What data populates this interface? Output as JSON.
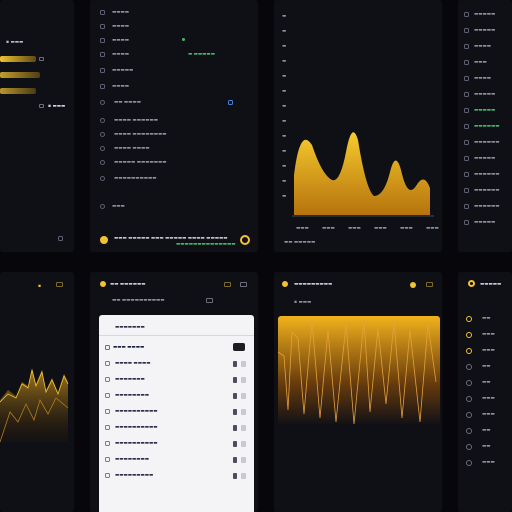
{
  "colors": {
    "bg": "#07070b",
    "panel": "#0f0f16",
    "accent_yellow": "#f2c232",
    "accent_green": "#43b86a",
    "white_card": "#f4f4f6"
  },
  "panel_a": {
    "header": "▪ ▬▬▬",
    "bars": [
      {
        "fill": 0.85
      },
      {
        "fill": 0.95
      },
      {
        "fill": 0.85
      }
    ]
  },
  "panel_b": {
    "items": [
      "▬▬▬▬",
      "▬▬▬▬",
      "▬▬▬▬",
      "▬▬▬▬",
      "▬▬▬▬▬",
      "▬▬▬▬",
      "▬▬  ▬▬▬▬",
      "▬▬▬▬  ▬▬▬▬▬▬",
      "▬▬▬▬  ▬▬▬▬▬▬▬▬",
      "▬▬▬▬  ▬▬▬▬",
      "▬▬▬▬▬  ▬▬▬▬▬▬▬",
      "▬▬▬▬▬▬▬▬▬▬",
      "▬▬▬"
    ],
    "green_label": "▬ ▬▬▬▬▬",
    "footer_text": "▬▬▬ ▬▬▬▬▬ ▬▬▬ ▬▬▬▬▬ ▬▬▬▬ ▬▬▬▬▬",
    "footer_green": "▬▬▬▬▬▬▬▬▬▬▬▬▬▬"
  },
  "panel_c": {
    "y_ticks": [
      "▬",
      "▬",
      "▬",
      "▬",
      "▬",
      "▬",
      "▬",
      "▬",
      "▬",
      "▬",
      "▬",
      "▬",
      "▬"
    ],
    "x_ticks": [
      "▬▬▬",
      "▬▬▬",
      "▬▬▬",
      "▬▬▬",
      "▬▬▬",
      "▬▬▬"
    ],
    "legend": "▬▬ ▬▬▬▬▬"
  },
  "panel_d": {
    "items": [
      "▬▬▬▬▬",
      "▬▬▬▬▬",
      "▬▬▬▬",
      "▬▬▬",
      "▬▬▬▬",
      "▬▬▬▬▬",
      "▬▬▬▬▬",
      "▬▬▬▬▬▬",
      "▬▬▬▬▬▬",
      "▬▬▬▬▬",
      "▬▬▬▬▬▬",
      "▬▬▬▬▬▬",
      "▬▬▬▬▬▬",
      "▬▬▬▬▬"
    ],
    "green_items": [
      6,
      7
    ]
  },
  "panel_f": {
    "title": "▬▬ ▬▬▬▬▬▬",
    "subtitle": "▬▬ ▬▬▬▬▬▬▬▬▬▬",
    "card_title": "▬▬▬▬▬▬▬",
    "selected_label": "▬▬▬ ▬▬▬▬",
    "rows": [
      "▬▬▬▬ ▬▬▬▬",
      "▬▬▬▬▬▬▬",
      "▬▬▬▬▬▬▬▬",
      "▬▬▬▬▬▬▬▬▬▬",
      "▬▬▬▬▬▬▬▬▬▬",
      "▬▬▬▬▬▬▬▬▬▬",
      "▬▬▬▬▬▬▬▬",
      "▬▬▬▬▬▬▬▬▬"
    ]
  },
  "panel_g": {
    "title": "▬▬▬▬▬▬▬▬▬"
  },
  "panel_h": {
    "title": "▬▬▬▬▬",
    "items": [
      "▬▬",
      "▬▬▬",
      "▬▬▬",
      "▬▬",
      "▬▬",
      "▬▬▬",
      "▬▬▬",
      "▬▬",
      "▬▬",
      "▬▬▬"
    ]
  },
  "icons": {
    "coin": "coin-icon",
    "menu": "menu-icon",
    "chart": "chart-icon"
  }
}
